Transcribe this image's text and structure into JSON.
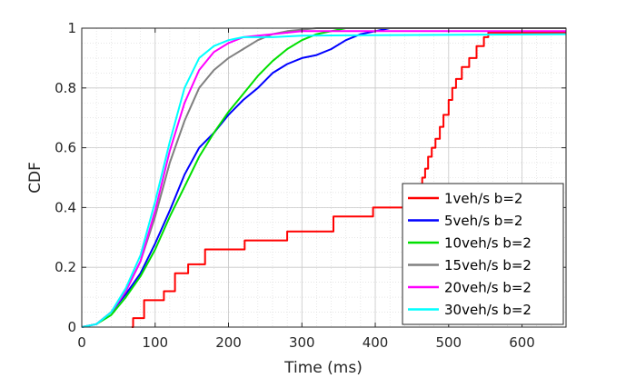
{
  "chart_data": {
    "type": "line",
    "title": "",
    "xlabel": "Time (ms)",
    "ylabel": "CDF",
    "xlim": [
      0,
      660
    ],
    "ylim": [
      0,
      1
    ],
    "xticks": [
      0,
      100,
      200,
      300,
      400,
      500,
      600
    ],
    "yticks": [
      0,
      0.2,
      0.4,
      0.6,
      0.8,
      1
    ],
    "ytick_labels": [
      "0",
      "0.2",
      "0.4",
      "0.6",
      "0.8",
      "1"
    ],
    "grid": true,
    "minor_grid": true,
    "legend_position": "bottom-right",
    "series": [
      {
        "name": "1veh/s b=2",
        "color": "#ff0000",
        "step": true,
        "x": [
          68,
          70,
          85,
          112,
          127,
          145,
          168,
          222,
          280,
          343,
          397,
          455,
          460,
          464,
          468,
          472,
          477,
          482,
          488,
          493,
          500,
          505,
          510,
          518,
          528,
          538,
          548,
          554,
          660
        ],
        "y": [
          0,
          0.03,
          0.09,
          0.12,
          0.18,
          0.21,
          0.26,
          0.29,
          0.32,
          0.37,
          0.4,
          0.43,
          0.46,
          0.5,
          0.53,
          0.57,
          0.6,
          0.63,
          0.67,
          0.71,
          0.76,
          0.8,
          0.83,
          0.87,
          0.9,
          0.94,
          0.97,
          0.985,
          0.985
        ]
      },
      {
        "name": "5veh/s b=2",
        "color": "#0000ff",
        "x": [
          0,
          20,
          40,
          60,
          80,
          100,
          120,
          140,
          160,
          180,
          200,
          220,
          240,
          260,
          280,
          300,
          320,
          340,
          360,
          380,
          400,
          420,
          440,
          660
        ],
        "y": [
          0,
          0.01,
          0.05,
          0.11,
          0.18,
          0.28,
          0.39,
          0.51,
          0.6,
          0.65,
          0.71,
          0.76,
          0.8,
          0.85,
          0.88,
          0.9,
          0.91,
          0.93,
          0.96,
          0.98,
          0.99,
          1.0,
          1.0,
          1.0
        ]
      },
      {
        "name": "10veh/s b=2",
        "color": "#00e000",
        "x": [
          0,
          20,
          40,
          60,
          80,
          100,
          120,
          140,
          160,
          180,
          200,
          220,
          240,
          260,
          280,
          300,
          320,
          340,
          360,
          660
        ],
        "y": [
          0,
          0.01,
          0.04,
          0.1,
          0.17,
          0.26,
          0.37,
          0.47,
          0.57,
          0.65,
          0.72,
          0.78,
          0.84,
          0.89,
          0.93,
          0.96,
          0.98,
          0.99,
          1.0,
          1.0
        ]
      },
      {
        "name": "15veh/s b=2",
        "color": "#808080",
        "x": [
          0,
          20,
          40,
          60,
          80,
          100,
          120,
          140,
          160,
          180,
          200,
          220,
          240,
          260,
          280,
          300,
          320,
          340,
          660
        ],
        "y": [
          0,
          0.01,
          0.05,
          0.12,
          0.22,
          0.37,
          0.55,
          0.69,
          0.8,
          0.86,
          0.9,
          0.93,
          0.96,
          0.98,
          0.99,
          0.995,
          1.0,
          1.0,
          1.0
        ]
      },
      {
        "name": "20veh/s b=2",
        "color": "#ff00ff",
        "x": [
          0,
          20,
          40,
          60,
          80,
          100,
          120,
          140,
          160,
          180,
          200,
          220,
          260,
          300,
          660
        ],
        "y": [
          0,
          0.01,
          0.05,
          0.12,
          0.22,
          0.39,
          0.59,
          0.75,
          0.86,
          0.92,
          0.95,
          0.97,
          0.98,
          0.99,
          0.99
        ]
      },
      {
        "name": "30veh/s b=2",
        "color": "#00ffff",
        "x": [
          0,
          20,
          40,
          60,
          80,
          100,
          120,
          140,
          160,
          180,
          200,
          220,
          240,
          260,
          300,
          660
        ],
        "y": [
          0,
          0.01,
          0.05,
          0.13,
          0.24,
          0.42,
          0.62,
          0.8,
          0.9,
          0.94,
          0.96,
          0.97,
          0.97,
          0.97,
          0.975,
          0.98
        ]
      }
    ]
  }
}
